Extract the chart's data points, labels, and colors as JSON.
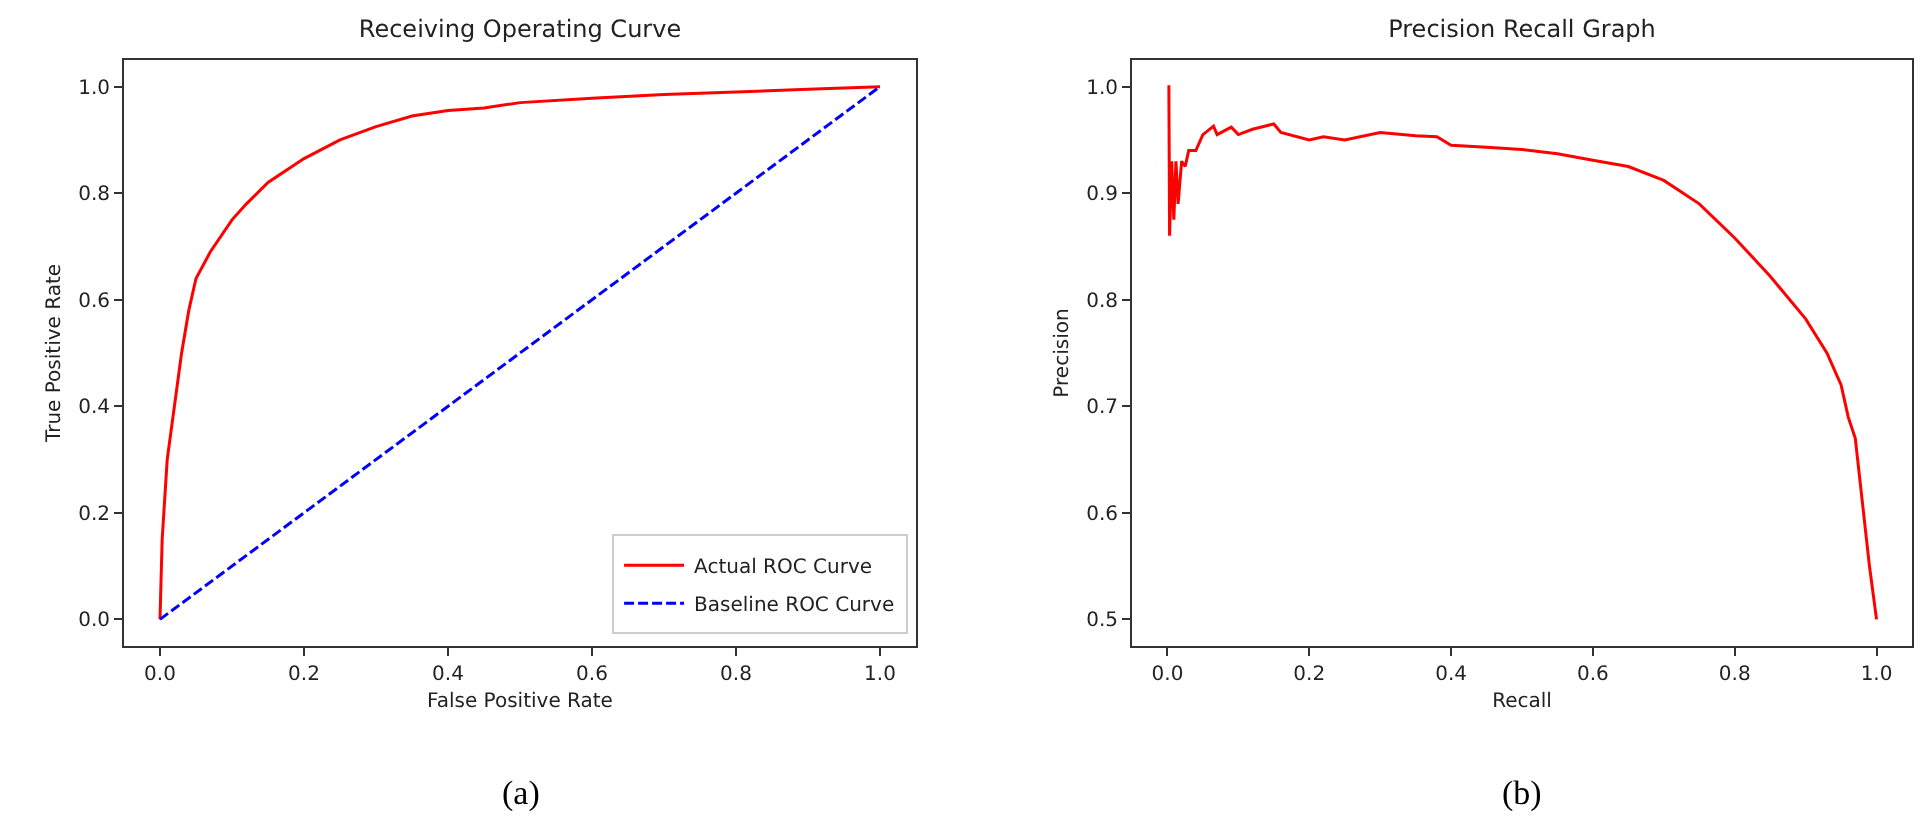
{
  "chart_data": [
    {
      "type": "line",
      "title": "Receiving Operating Curve",
      "xlabel": "False Positive Rate",
      "ylabel": "True Positive Rate",
      "annotations": [
        "(a)"
      ],
      "xlim": [
        -0.05,
        1.05
      ],
      "xticks": [
        {
          "value": 0,
          "label": "0.0"
        },
        {
          "value": 0.2,
          "label": "0.2"
        },
        {
          "value": 0.4,
          "label": "0.4"
        },
        {
          "value": 0.6,
          "label": "0.6"
        },
        {
          "value": 0.8,
          "label": "0.8"
        },
        {
          "value": 1,
          "label": "1.0"
        }
      ],
      "ylim": [
        -0.05,
        1.05
      ],
      "yticks": [
        {
          "value": 0,
          "label": "0.0"
        },
        {
          "value": 0.2,
          "label": "0.2"
        },
        {
          "value": 0.4,
          "label": "0.4"
        },
        {
          "value": 0.6,
          "label": "0.6"
        },
        {
          "value": 0.8,
          "label": "0.8"
        },
        {
          "value": 1,
          "label": "1.0"
        }
      ],
      "grid": false,
      "legend": "bottom right",
      "marker": "none",
      "series": [
        {
          "name": "Actual ROC Curve",
          "color": "#ff0000",
          "line_style": "solid",
          "x": [
            0,
            0.003,
            0.01,
            0.02,
            0.03,
            0.04,
            0.05,
            0.07,
            0.1,
            0.12,
            0.15,
            0.2,
            0.25,
            0.3,
            0.35,
            0.4,
            0.45,
            0.5,
            0.6,
            0.7,
            0.8,
            0.9,
            1
          ],
          "values": [
            0,
            0.15,
            0.3,
            0.4,
            0.5,
            0.58,
            0.64,
            0.69,
            0.75,
            0.78,
            0.82,
            0.865,
            0.9,
            0.925,
            0.945,
            0.955,
            0.96,
            0.97,
            0.978,
            0.985,
            0.99,
            0.995,
            1
          ]
        },
        {
          "name": "Baseline ROC Curve",
          "color": "#0000ff",
          "line_style": "dashed",
          "x": [
            0,
            1
          ],
          "values": [
            0,
            1
          ]
        }
      ]
    },
    {
      "type": "line",
      "title": "Precision Recall Graph",
      "xlabel": "Recall",
      "ylabel": "Precision",
      "annotations": [
        "(b)"
      ],
      "xlim": [
        -0.05,
        1.05
      ],
      "xticks": [
        {
          "value": 0,
          "label": "0.0"
        },
        {
          "value": 0.2,
          "label": "0.2"
        },
        {
          "value": 0.4,
          "label": "0.4"
        },
        {
          "value": 0.6,
          "label": "0.6"
        },
        {
          "value": 0.8,
          "label": "0.8"
        },
        {
          "value": 1,
          "label": "1.0"
        }
      ],
      "ylim": [
        0.475,
        1.025
      ],
      "yticks": [
        {
          "value": 0.5,
          "label": "0.5"
        },
        {
          "value": 0.6,
          "label": "0.6"
        },
        {
          "value": 0.7,
          "label": "0.7"
        },
        {
          "value": 0.8,
          "label": "0.8"
        },
        {
          "value": 0.9,
          "label": "0.9"
        },
        {
          "value": 1,
          "label": "1.0"
        }
      ],
      "grid": false,
      "legend": false,
      "marker": "none",
      "series": [
        {
          "color": "#ff0000",
          "line_style": "solid",
          "x": [
            0,
            0.002,
            0.003,
            0.006,
            0.009,
            0.012,
            0.015,
            0.02,
            0.025,
            0.03,
            0.04,
            0.05,
            0.065,
            0.07,
            0.09,
            0.1,
            0.12,
            0.15,
            0.16,
            0.2,
            0.22,
            0.25,
            0.3,
            0.35,
            0.38,
            0.4,
            0.45,
            0.5,
            0.55,
            0.6,
            0.65,
            0.7,
            0.75,
            0.8,
            0.85,
            0.9,
            0.93,
            0.95,
            0.96,
            0.97,
            0.98,
            0.99,
            1
          ],
          "values": [
            1,
            1,
            0.86,
            0.93,
            0.875,
            0.93,
            0.89,
            0.93,
            0.925,
            0.94,
            0.94,
            0.955,
            0.963,
            0.955,
            0.962,
            0.955,
            0.96,
            0.965,
            0.957,
            0.95,
            0.953,
            0.95,
            0.957,
            0.954,
            0.953,
            0.945,
            0.943,
            0.941,
            0.937,
            0.931,
            0.925,
            0.912,
            0.89,
            0.858,
            0.822,
            0.782,
            0.75,
            0.72,
            0.69,
            0.67,
            0.61,
            0.55,
            0.5
          ]
        }
      ]
    }
  ]
}
